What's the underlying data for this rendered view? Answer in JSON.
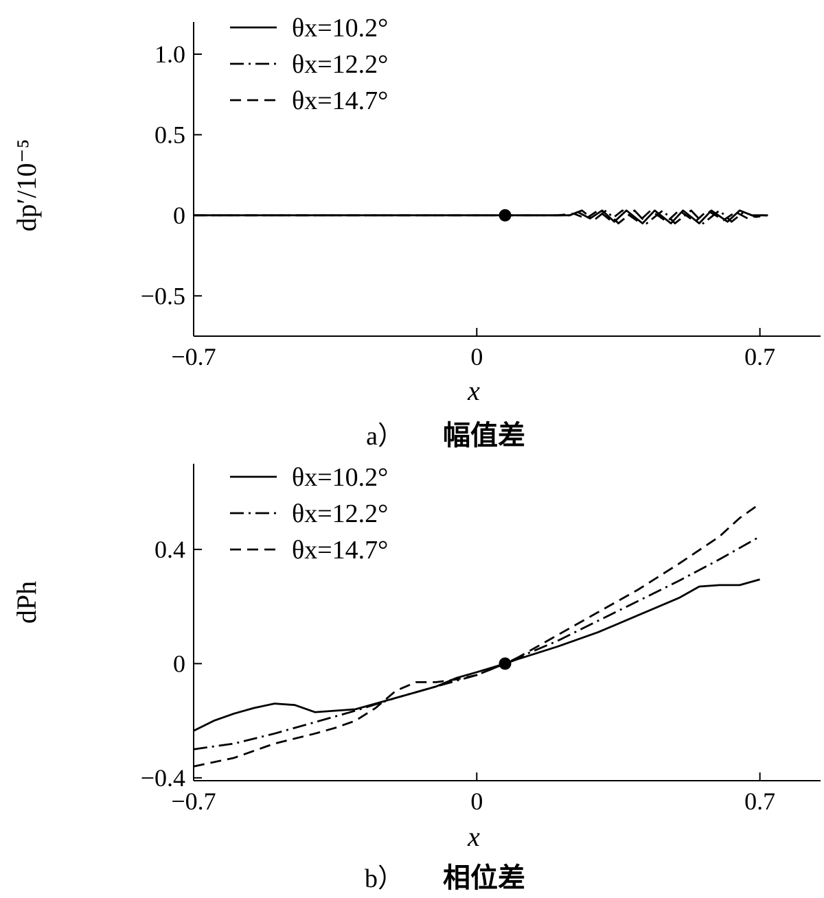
{
  "chart_data": [
    {
      "type": "line",
      "panel_label": "a）",
      "caption": "幅值差",
      "xlabel": "x",
      "ylabel": "dp′/10⁻⁵",
      "xlim": [
        -0.7,
        0.85
      ],
      "ylim": [
        -0.75,
        1.2
      ],
      "x_ticks": [
        -0.7,
        0,
        0.7
      ],
      "x_tick_labels": [
        "−0.7",
        "0",
        "0.7"
      ],
      "y_ticks": [
        -0.5,
        0,
        0.5,
        1.0
      ],
      "y_tick_labels": [
        "−0.5",
        "0",
        "0.5",
        "1.0"
      ],
      "grid": false,
      "legend": "top-left",
      "marker_point": {
        "x": 0.07,
        "y": 0
      },
      "series": [
        {
          "name": "θx=10.2°",
          "style": "solid",
          "points": [
            [
              -0.7,
              0
            ],
            [
              0.0,
              0
            ],
            [
              0.07,
              0
            ],
            [
              0.2,
              0
            ],
            [
              0.23,
              0
            ],
            [
              0.25,
              0.02
            ],
            [
              0.28,
              -0.02
            ],
            [
              0.31,
              0.03
            ],
            [
              0.34,
              -0.04
            ],
            [
              0.37,
              0.03
            ],
            [
              0.41,
              -0.05
            ],
            [
              0.44,
              0.03
            ],
            [
              0.48,
              -0.05
            ],
            [
              0.51,
              0.03
            ],
            [
              0.55,
              -0.05
            ],
            [
              0.58,
              0.03
            ],
            [
              0.62,
              -0.04
            ],
            [
              0.65,
              0.03
            ],
            [
              0.68,
              0
            ],
            [
              0.72,
              0
            ]
          ]
        },
        {
          "name": "θx=12.2°",
          "style": "dashdot",
          "points": [
            [
              -0.7,
              0
            ],
            [
              0.0,
              0
            ],
            [
              0.07,
              0
            ],
            [
              0.2,
              0
            ],
            [
              0.23,
              0
            ],
            [
              0.26,
              0.03
            ],
            [
              0.29,
              -0.03
            ],
            [
              0.32,
              0.03
            ],
            [
              0.35,
              -0.05
            ],
            [
              0.39,
              0.03
            ],
            [
              0.42,
              -0.05
            ],
            [
              0.46,
              0.03
            ],
            [
              0.49,
              -0.05
            ],
            [
              0.53,
              0.03
            ],
            [
              0.56,
              -0.05
            ],
            [
              0.6,
              0.03
            ],
            [
              0.63,
              -0.04
            ],
            [
              0.66,
              0.02
            ],
            [
              0.69,
              -0.01
            ],
            [
              0.72,
              0
            ]
          ]
        },
        {
          "name": "θx=14.7°",
          "style": "dashed",
          "points": [
            [
              -0.7,
              0
            ],
            [
              0.0,
              0
            ],
            [
              0.07,
              0
            ],
            [
              0.2,
              0
            ],
            [
              0.24,
              0.01
            ],
            [
              0.27,
              -0.02
            ],
            [
              0.3,
              0.03
            ],
            [
              0.33,
              -0.03
            ],
            [
              0.36,
              0.03
            ],
            [
              0.4,
              -0.04
            ],
            [
              0.43,
              0.03
            ],
            [
              0.47,
              -0.04
            ],
            [
              0.5,
              0.03
            ],
            [
              0.54,
              -0.04
            ],
            [
              0.57,
              0.03
            ],
            [
              0.61,
              -0.03
            ],
            [
              0.64,
              0.02
            ],
            [
              0.67,
              -0.02
            ],
            [
              0.7,
              0
            ],
            [
              0.72,
              0
            ]
          ]
        }
      ]
    },
    {
      "type": "line",
      "panel_label": "b）",
      "caption": "相位差",
      "xlabel": "x",
      "ylabel": "dPh",
      "xlim": [
        -0.7,
        0.85
      ],
      "ylim": [
        -0.41,
        0.7
      ],
      "x_ticks": [
        -0.7,
        0,
        0.7
      ],
      "x_tick_labels": [
        "−0.7",
        "0",
        "0.7"
      ],
      "y_ticks": [
        -0.4,
        0,
        0.4
      ],
      "y_tick_labels": [
        "−0.4",
        "0",
        "0.4"
      ],
      "grid": false,
      "legend": "top-left",
      "marker_point": {
        "x": 0.07,
        "y": 0
      },
      "series": [
        {
          "name": "θx=10.2°",
          "style": "solid",
          "points": [
            [
              -0.7,
              -0.235
            ],
            [
              -0.65,
              -0.2
            ],
            [
              -0.6,
              -0.175
            ],
            [
              -0.55,
              -0.155
            ],
            [
              -0.5,
              -0.14
            ],
            [
              -0.45,
              -0.145
            ],
            [
              -0.4,
              -0.17
            ],
            [
              -0.35,
              -0.165
            ],
            [
              -0.3,
              -0.16
            ],
            [
              -0.25,
              -0.14
            ],
            [
              -0.2,
              -0.12
            ],
            [
              -0.15,
              -0.1
            ],
            [
              -0.1,
              -0.08
            ],
            [
              -0.05,
              -0.05
            ],
            [
              0.0,
              -0.03
            ],
            [
              0.07,
              0
            ],
            [
              0.1,
              0.015
            ],
            [
              0.2,
              0.06
            ],
            [
              0.3,
              0.11
            ],
            [
              0.4,
              0.17
            ],
            [
              0.5,
              0.23
            ],
            [
              0.55,
              0.27
            ],
            [
              0.6,
              0.275
            ],
            [
              0.65,
              0.275
            ],
            [
              0.7,
              0.295
            ]
          ]
        },
        {
          "name": "θx=12.2°",
          "style": "dashdot",
          "points": [
            [
              -0.7,
              -0.3
            ],
            [
              -0.6,
              -0.28
            ],
            [
              -0.5,
              -0.245
            ],
            [
              -0.4,
              -0.205
            ],
            [
              -0.3,
              -0.165
            ],
            [
              -0.2,
              -0.12
            ],
            [
              -0.1,
              -0.08
            ],
            [
              0.0,
              -0.04
            ],
            [
              0.07,
              0
            ],
            [
              0.1,
              0.02
            ],
            [
              0.2,
              0.08
            ],
            [
              0.3,
              0.15
            ],
            [
              0.4,
              0.22
            ],
            [
              0.5,
              0.29
            ],
            [
              0.6,
              0.365
            ],
            [
              0.7,
              0.445
            ]
          ]
        },
        {
          "name": "θx=14.7°",
          "style": "dashed",
          "points": [
            [
              -0.7,
              -0.36
            ],
            [
              -0.6,
              -0.33
            ],
            [
              -0.5,
              -0.28
            ],
            [
              -0.4,
              -0.245
            ],
            [
              -0.35,
              -0.225
            ],
            [
              -0.3,
              -0.2
            ],
            [
              -0.25,
              -0.155
            ],
            [
              -0.2,
              -0.095
            ],
            [
              -0.15,
              -0.065
            ],
            [
              -0.1,
              -0.065
            ],
            [
              -0.05,
              -0.055
            ],
            [
              0.0,
              -0.04
            ],
            [
              0.07,
              0
            ],
            [
              0.1,
              0.02
            ],
            [
              0.2,
              0.1
            ],
            [
              0.3,
              0.18
            ],
            [
              0.4,
              0.26
            ],
            [
              0.5,
              0.35
            ],
            [
              0.6,
              0.445
            ],
            [
              0.65,
              0.51
            ],
            [
              0.7,
              0.56
            ]
          ]
        }
      ]
    }
  ]
}
